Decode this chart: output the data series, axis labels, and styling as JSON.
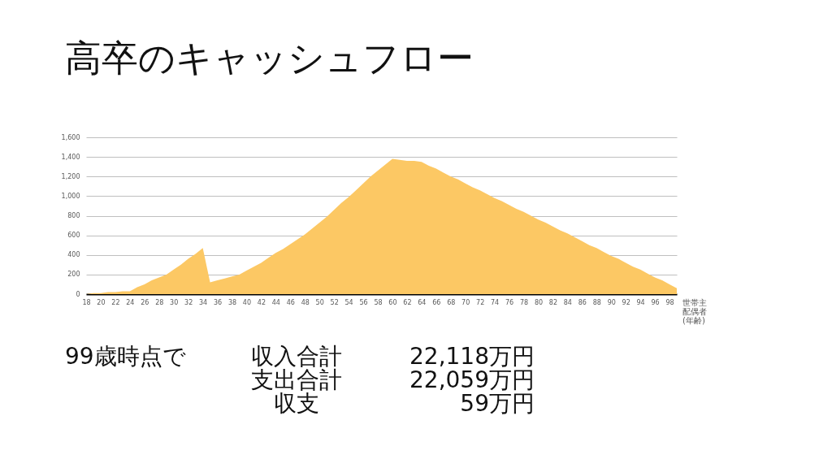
{
  "chart_data": {
    "type": "area",
    "title": "高卒のキャッシュフロー",
    "xlabel": "世帯主配偶者(年齢)",
    "categories": [
      "18",
      null,
      "20",
      null,
      "22",
      null,
      "24",
      null,
      "26",
      null,
      "28",
      null,
      "30",
      null,
      "32",
      null,
      "34",
      null,
      "36",
      null,
      "38",
      null,
      "40",
      null,
      "42",
      null,
      "44",
      null,
      "46",
      null,
      "48",
      null,
      "50",
      null,
      "52",
      null,
      "54",
      null,
      "56",
      null,
      "58",
      null,
      "60",
      null,
      "62",
      null,
      "64",
      null,
      "66",
      null,
      "68",
      null,
      "70",
      null,
      "72",
      null,
      "74",
      null,
      "76",
      null,
      "78",
      null,
      "80",
      null,
      "82",
      null,
      "84",
      null,
      "86",
      null,
      "88",
      null,
      "90",
      null,
      "92",
      null,
      "94",
      null,
      "96",
      null,
      "98",
      null
    ],
    "values": [
      0,
      10,
      10,
      20,
      20,
      30,
      30,
      70,
      100,
      140,
      170,
      200,
      250,
      300,
      360,
      410,
      470,
      120,
      140,
      160,
      180,
      200,
      240,
      280,
      320,
      370,
      420,
      460,
      510,
      560,
      610,
      670,
      730,
      790,
      860,
      930,
      990,
      1060,
      1130,
      1200,
      1260,
      1320,
      1380,
      1370,
      1360,
      1360,
      1350,
      1310,
      1280,
      1240,
      1200,
      1170,
      1130,
      1090,
      1060,
      1020,
      980,
      950,
      910,
      870,
      840,
      800,
      760,
      730,
      690,
      650,
      620,
      580,
      540,
      500,
      470,
      430,
      390,
      360,
      320,
      280,
      250,
      210,
      170,
      140,
      100,
      60
    ],
    "color": "#fcc864",
    "ylim": [
      0,
      1600
    ],
    "yticks": [
      0,
      200,
      400,
      600,
      800,
      {
        "value": 1000,
        "label": "1,000"
      },
      {
        "value": 1200,
        "label": "1,200"
      },
      {
        "value": 1400,
        "label": "1,400"
      },
      {
        "value": 1600,
        "label": "1,600"
      }
    ],
    "grid": "y",
    "annotations": [
      "99歳時点で",
      "収入合計",
      "22,118万円",
      "支出合計",
      "22,059万円",
      "収支",
      "59万円"
    ]
  }
}
